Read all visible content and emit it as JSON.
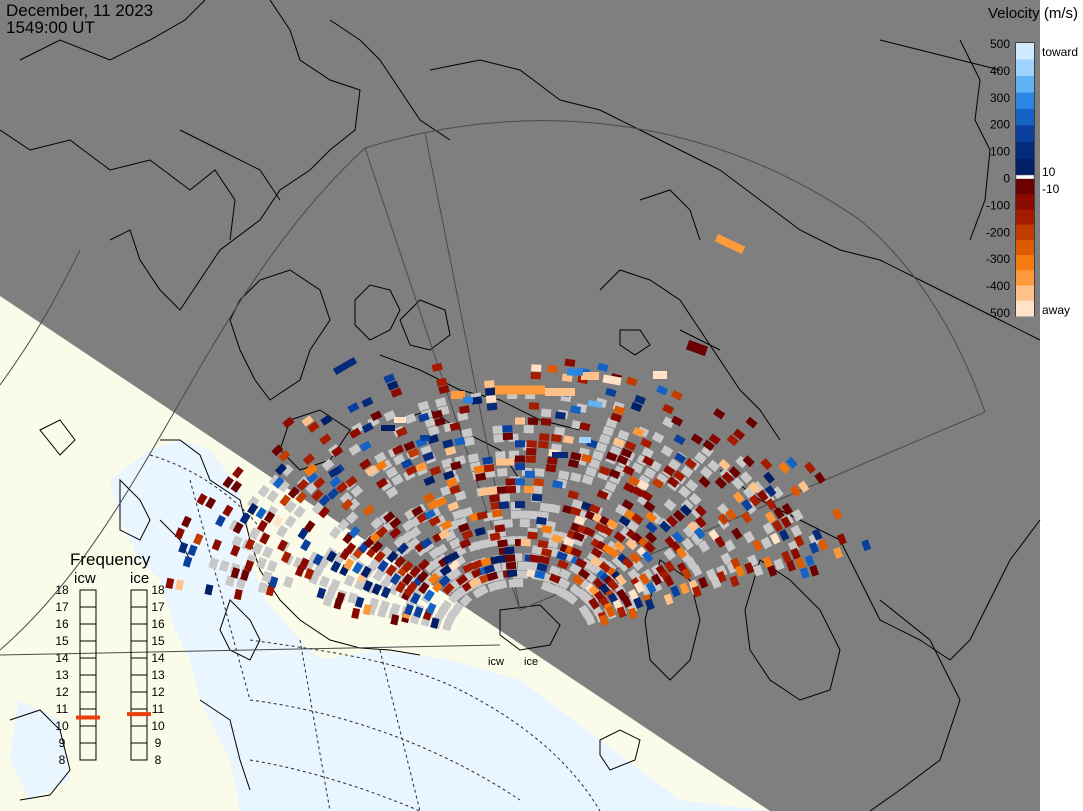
{
  "header": {
    "date": "December, 11 2023",
    "time": "1549:00 UT"
  },
  "velocity_scale": {
    "title": "Velocity (m/s)",
    "tick_labels": [
      "500",
      "400",
      "300",
      "200",
      "100",
      "0",
      "-100",
      "-200",
      "-300",
      "-400",
      "-500"
    ],
    "toward_label": "toward",
    "away_label": "away",
    "pos_threshold_label": "10",
    "neg_threshold_label": "-10",
    "toward_colors": [
      "#cfe9ff",
      "#9fd3ff",
      "#5fb3f5",
      "#2a86e0",
      "#1463c4",
      "#0a3f9e",
      "#062a7a",
      "#001f66"
    ],
    "away_colors": [
      "#6b0000",
      "#8a0a00",
      "#a41b00",
      "#c23c00",
      "#de5a00",
      "#f57a10",
      "#ff9a3c",
      "#ffc28a",
      "#ffe3c8"
    ]
  },
  "frequency": {
    "title": "Frequency",
    "radars": [
      {
        "label": "icw",
        "value": 10.5
      },
      {
        "label": "ice",
        "value": 10.7
      }
    ],
    "scale_labels": [
      "18",
      "17",
      "16",
      "15",
      "14",
      "13",
      "12",
      "11",
      "10",
      "9",
      "8"
    ],
    "range": [
      8,
      18
    ],
    "marker_color": "#e8400c"
  },
  "radar_sites": [
    {
      "label": "icw"
    },
    {
      "label": "ice"
    }
  ],
  "colors": {
    "night": "#7f7f7f",
    "day_land": "#fbfbe9",
    "day_ocean": "#e9f5ff",
    "ground_scatter": "#c8c8c8",
    "coast": "#000000",
    "grid": "#4a4a4a"
  }
}
